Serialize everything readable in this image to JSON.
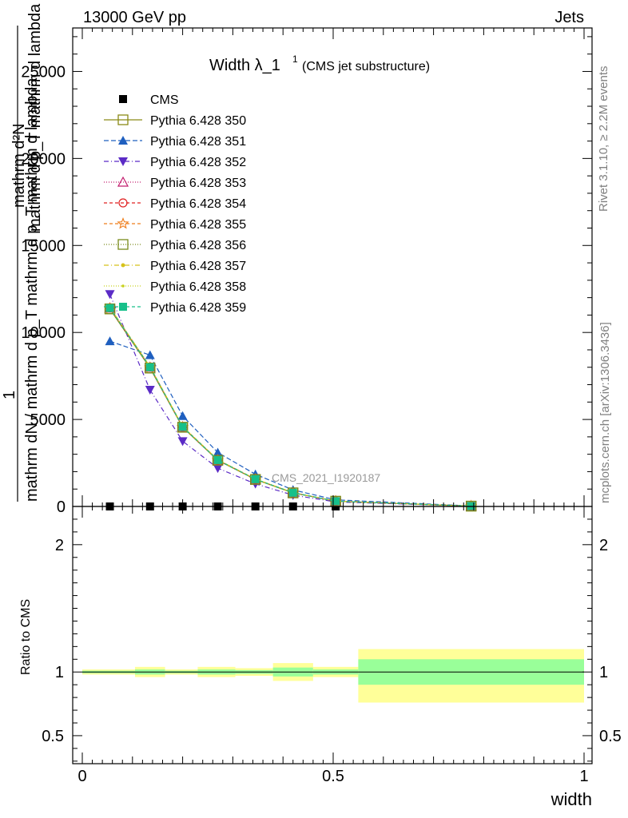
{
  "header": {
    "left": "13000 GeV pp",
    "right": "Jets"
  },
  "side_labels": {
    "rivet": "Rivet 3.1.10, ≥ 2.2M events",
    "mcplots": "mcplots.cern.ch [arXiv:1306.3436]"
  },
  "watermark": "CMS_2021_I1920187",
  "chart_data": [
    {
      "type": "line",
      "title": "Width λ_1",
      "title_sup": "1",
      "subtitle": "(CMS jet substructure)",
      "ylabel_lines": [
        "mathrm d²N",
        "1",
        "mathrm d p_T mathrm d lambda",
        "mathrm dN / mathrm d p_T mathrm d p_T mathrm d lambda"
      ],
      "xlim": [
        0,
        1
      ],
      "ylim": [
        0,
        27500
      ],
      "yticks": [
        0,
        5000,
        10000,
        15000,
        20000,
        25000
      ],
      "ytick_labels": [
        "0",
        "5000",
        "10000",
        "15000",
        "20000",
        "25000"
      ],
      "x": [
        0.055,
        0.135,
        0.2,
        0.27,
        0.345,
        0.42,
        0.505,
        0.775
      ],
      "series": [
        {
          "name": "CMS",
          "color": "#000000",
          "marker": "square-filled",
          "dash": "none",
          "values": [
            0,
            0,
            0,
            0,
            0,
            0,
            0,
            0
          ]
        },
        {
          "name": "Pythia 6.428 350",
          "color": "#8a8a16",
          "marker": "square-open",
          "dash": "solid",
          "values": [
            11350,
            7950,
            4550,
            2650,
            1550,
            780,
            300,
            20
          ]
        },
        {
          "name": "Pythia 6.428 351",
          "color": "#1f5fbf",
          "marker": "triangle-up",
          "dash": "6,3",
          "values": [
            9500,
            8700,
            5200,
            3100,
            1850,
            950,
            380,
            30
          ]
        },
        {
          "name": "Pythia 6.428 352",
          "color": "#5b2bc6",
          "marker": "triangle-down",
          "dash": "6,3,1,3",
          "values": [
            12200,
            6700,
            3750,
            2200,
            1300,
            650,
            260,
            20
          ]
        },
        {
          "name": "Pythia 6.428 353",
          "color": "#c21d6e",
          "marker": "triangle-open",
          "dash": "1,2",
          "values": [
            11400,
            8000,
            4560,
            2660,
            1560,
            790,
            305,
            22
          ]
        },
        {
          "name": "Pythia 6.428 354",
          "color": "#e02020",
          "marker": "circle-open",
          "dash": "4,3",
          "values": [
            11420,
            8020,
            4580,
            2670,
            1570,
            790,
            305,
            22
          ]
        },
        {
          "name": "Pythia 6.428 355",
          "color": "#ef7d1a",
          "marker": "star-open",
          "dash": "4,3",
          "values": [
            11380,
            7980,
            4560,
            2660,
            1560,
            785,
            303,
            21
          ]
        },
        {
          "name": "Pythia 6.428 356",
          "color": "#7a8b1c",
          "marker": "square-open",
          "dash": "1,2",
          "values": [
            11360,
            7960,
            4550,
            2655,
            1555,
            782,
            301,
            20
          ]
        },
        {
          "name": "Pythia 6.428 357",
          "color": "#d6c21a",
          "marker": "dot",
          "dash": "6,3,1,3",
          "values": [
            11440,
            8030,
            4590,
            2680,
            1575,
            795,
            307,
            22
          ]
        },
        {
          "name": "Pythia 6.428 358",
          "color": "#c7d11a",
          "marker": "dot-small",
          "dash": "1,2",
          "values": [
            11460,
            8050,
            4600,
            2690,
            1580,
            798,
            308,
            23
          ]
        },
        {
          "name": "Pythia 6.428 359",
          "color": "#17c08a",
          "marker": "square-filled",
          "dash": "4,3",
          "values": [
            11400,
            8000,
            4570,
            2665,
            1565,
            788,
            304,
            21
          ]
        }
      ]
    },
    {
      "type": "area",
      "ylabel": "Ratio to CMS",
      "xlabel": "width",
      "xlim": [
        0,
        1
      ],
      "ylim": [
        0.28,
        2.3
      ],
      "xticks": [
        0,
        0.5,
        1
      ],
      "xtick_labels": [
        "0",
        "0.5",
        "1"
      ],
      "yticks": [
        0.5,
        1,
        2
      ],
      "ytick_labels": [
        "0.5",
        "1",
        "2"
      ],
      "reference_line": 1,
      "bands": [
        {
          "x0": 0.0,
          "x1": 0.105,
          "stat": [
            0.99,
            1.01
          ],
          "total": [
            0.98,
            1.02
          ]
        },
        {
          "x0": 0.105,
          "x1": 0.165,
          "stat": [
            0.98,
            1.02
          ],
          "total": [
            0.96,
            1.04
          ]
        },
        {
          "x0": 0.165,
          "x1": 0.23,
          "stat": [
            0.99,
            1.01
          ],
          "total": [
            0.98,
            1.02
          ]
        },
        {
          "x0": 0.23,
          "x1": 0.305,
          "stat": [
            0.98,
            1.02
          ],
          "total": [
            0.96,
            1.04
          ]
        },
        {
          "x0": 0.305,
          "x1": 0.38,
          "stat": [
            0.985,
            1.015
          ],
          "total": [
            0.97,
            1.03
          ]
        },
        {
          "x0": 0.38,
          "x1": 0.46,
          "stat": [
            0.965,
            1.035
          ],
          "total": [
            0.93,
            1.07
          ]
        },
        {
          "x0": 0.46,
          "x1": 0.55,
          "stat": [
            0.98,
            1.02
          ],
          "total": [
            0.96,
            1.04
          ]
        },
        {
          "x0": 0.55,
          "x1": 1.0,
          "stat": [
            0.9,
            1.1
          ],
          "total": [
            0.76,
            1.18
          ]
        }
      ]
    }
  ],
  "colors": {
    "stat_band": "#99ff99",
    "total_band": "#ffff99",
    "axis": "#000000",
    "side_text": "#808080"
  }
}
